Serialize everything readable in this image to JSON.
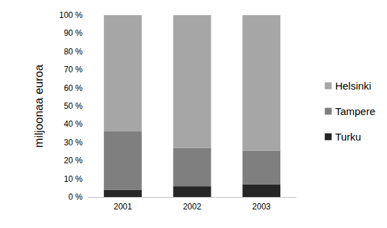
{
  "chart_data": {
    "type": "bar",
    "stacked": true,
    "y_label": "miljoonaa euroa",
    "categories": [
      "2001",
      "2002",
      "2003"
    ],
    "series": [
      {
        "name": "Turku",
        "color": "#262626",
        "values": [
          4,
          6,
          7
        ]
      },
      {
        "name": "Tampere",
        "color": "#7f7f7f",
        "values": [
          32,
          21,
          18.5
        ]
      },
      {
        "name": "Helsinki",
        "color": "#a6a6a6",
        "values": [
          64,
          73,
          74.5
        ]
      }
    ],
    "ylim": [
      0,
      100
    ],
    "yticks": [
      {
        "value": 0,
        "label": "0 %"
      },
      {
        "value": 10,
        "label": "10 %"
      },
      {
        "value": 20,
        "label": "20 %"
      },
      {
        "value": 30,
        "label": "30 %"
      },
      {
        "value": 40,
        "label": "40 %"
      },
      {
        "value": 50,
        "label": "50 %"
      },
      {
        "value": 60,
        "label": "60 %"
      },
      {
        "value": 70,
        "label": "70 %"
      },
      {
        "value": 80,
        "label": "80 %"
      },
      {
        "value": 90,
        "label": "90 %"
      },
      {
        "value": 100,
        "label": "100 %"
      }
    ],
    "grid": false,
    "legend": "right"
  }
}
